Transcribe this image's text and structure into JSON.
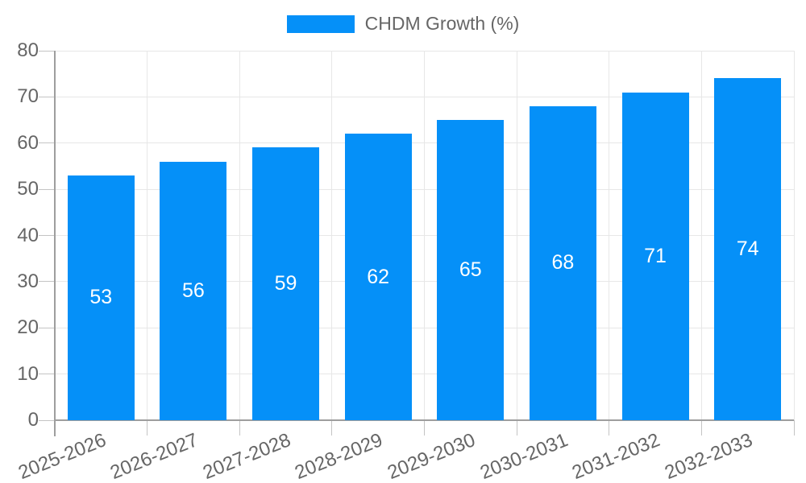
{
  "chart_data": {
    "type": "bar",
    "title": "",
    "legend": [
      "CHDM Growth (%)"
    ],
    "legend_position": "top-center",
    "categories": [
      "2025-2026",
      "2026-2027",
      "2027-2028",
      "2028-2029",
      "2029-2030",
      "2030-2031",
      "2031-2032",
      "2032-2033"
    ],
    "series": [
      {
        "name": "CHDM Growth (%)",
        "values": [
          53,
          56,
          59,
          62,
          65,
          68,
          71,
          74
        ]
      }
    ],
    "xlabel": "",
    "ylabel": "",
    "ylim": [
      0,
      80
    ],
    "ytick_step": 10,
    "yticks": [
      0,
      10,
      20,
      30,
      40,
      50,
      60,
      70,
      80
    ],
    "grid": true,
    "bar_value_labels_inside": true,
    "xtick_label_rotation_deg": -22,
    "colors": {
      "bar": "#0590f8",
      "grid": "#e7e7e7",
      "axis": "#9e9e9e",
      "tick": "#c4c4c4",
      "text": "#666666",
      "bar_label": "#ffffff",
      "background": "#ffffff"
    }
  }
}
